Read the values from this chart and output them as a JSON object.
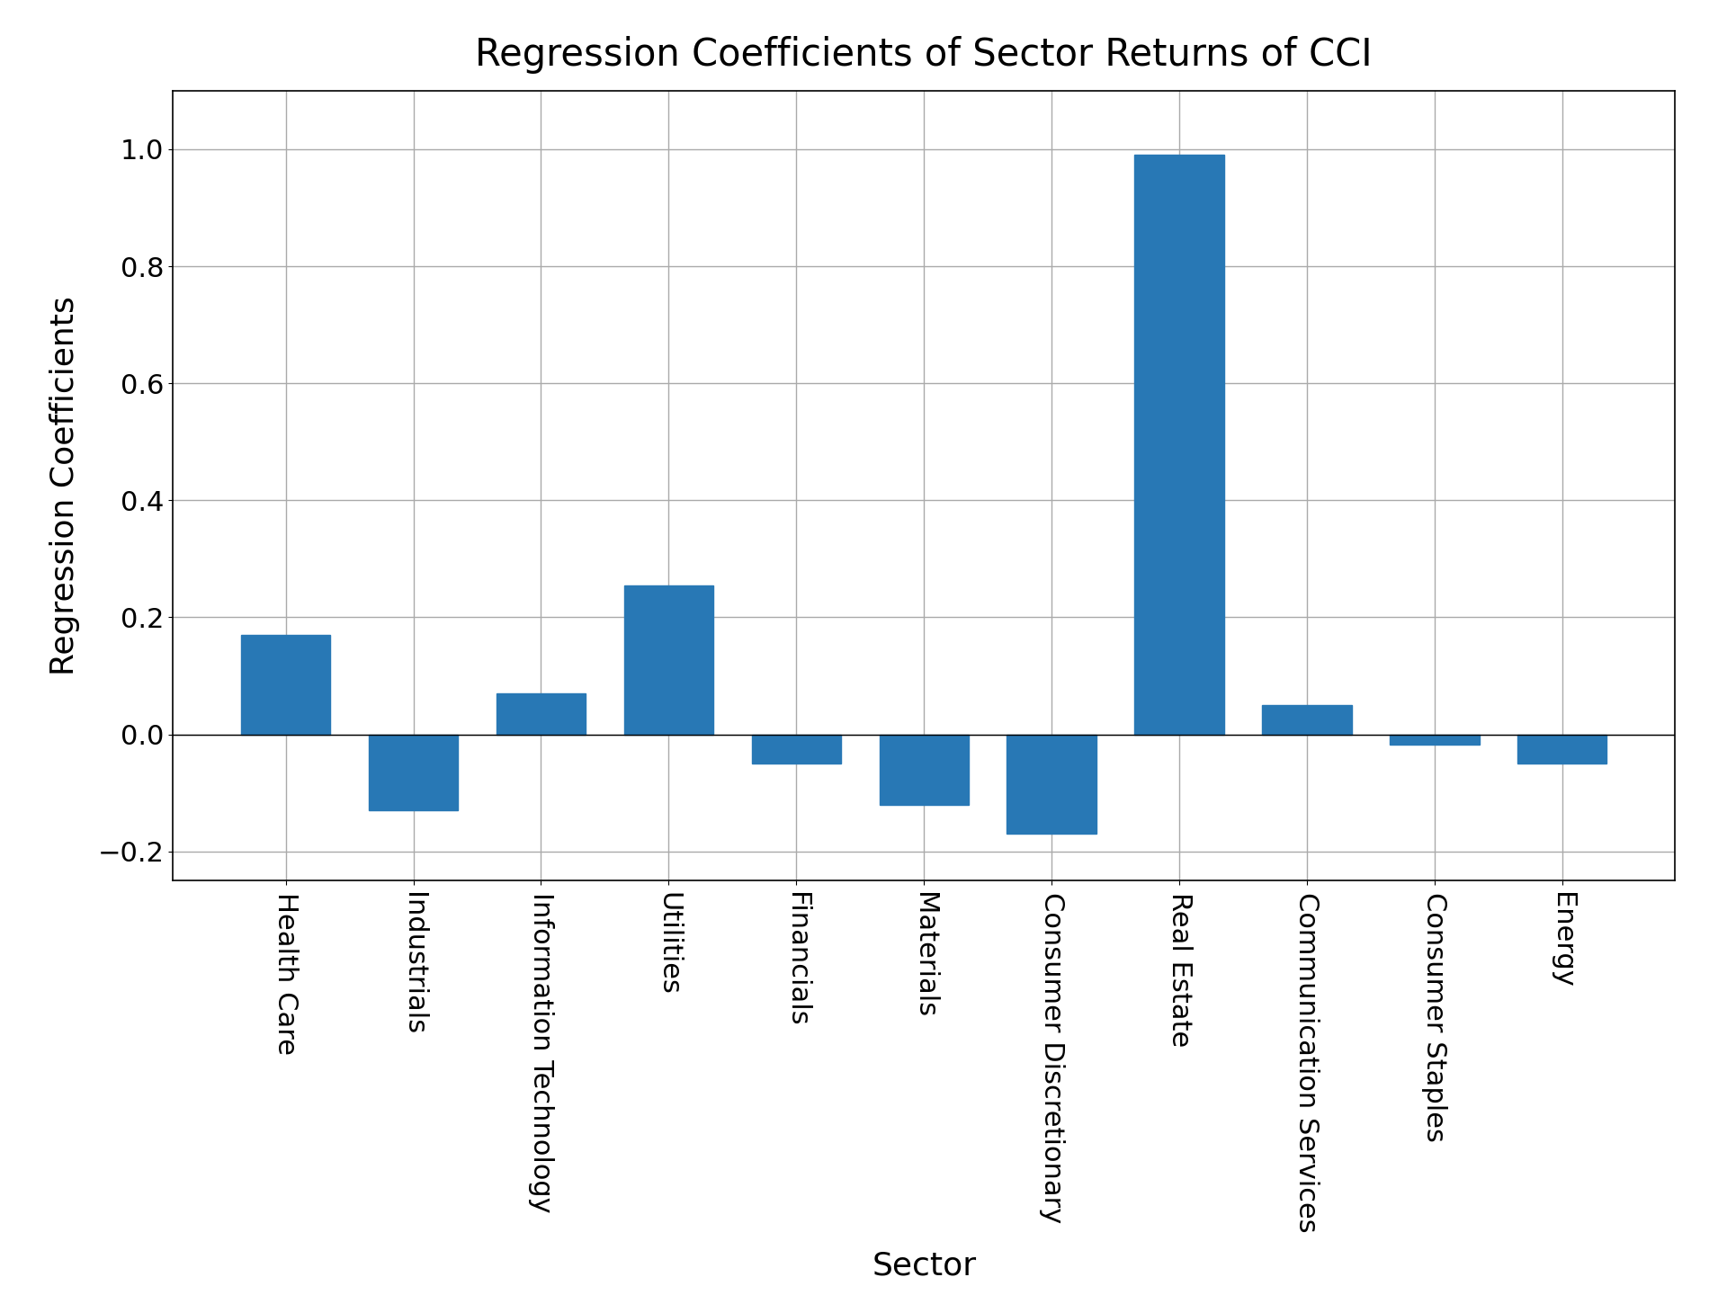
{
  "categories": [
    "Health Care",
    "Industrials",
    "Information Technology",
    "Utilities",
    "Financials",
    "Materials",
    "Consumer Discretionary",
    "Real Estate",
    "Communication Services",
    "Consumer Staples",
    "Energy"
  ],
  "values": [
    0.17,
    -0.13,
    0.07,
    0.255,
    -0.05,
    -0.12,
    -0.17,
    0.99,
    0.05,
    -0.018,
    -0.05
  ],
  "bar_color": "#2878b5",
  "title": "Regression Coefficients of Sector Returns of CCI",
  "xlabel": "Sector",
  "ylabel": "Regression Coefficients",
  "ylim": [
    -0.25,
    1.1
  ],
  "yticks": [
    -0.2,
    0.0,
    0.2,
    0.4,
    0.6,
    0.8,
    1.0
  ],
  "title_fontsize": 30,
  "label_fontsize": 26,
  "tick_fontsize": 22,
  "bar_width": 0.7,
  "background_color": "#ffffff",
  "grid_color": "#aaaaaa"
}
